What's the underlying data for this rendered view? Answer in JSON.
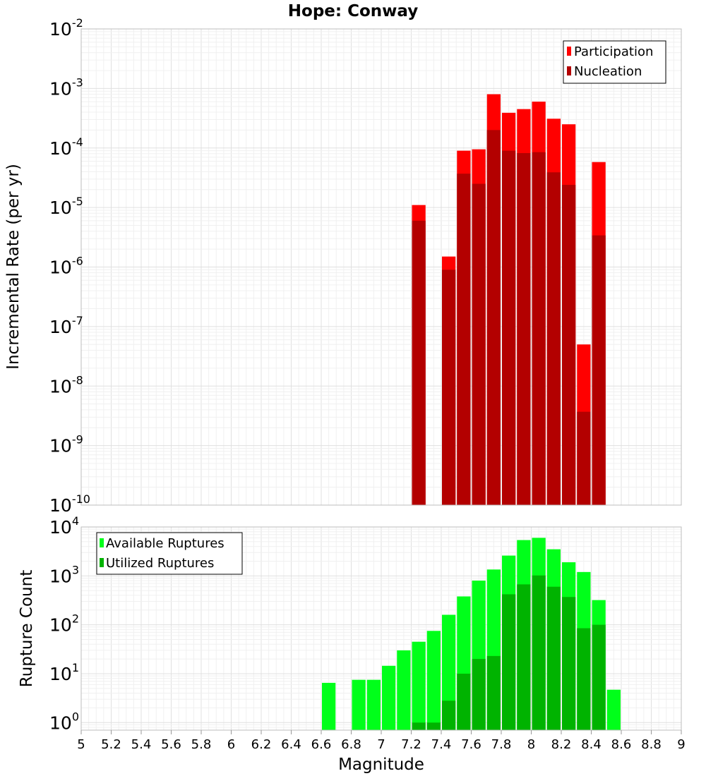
{
  "chart_data": [
    {
      "type": "bar",
      "title": "Hope: Conway",
      "xlabel": "",
      "ylabel": "Incremental Rate (per yr)",
      "yscale": "log",
      "ylim": [
        1e-10,
        0.01
      ],
      "xlim": [
        5,
        9
      ],
      "grid": true,
      "legend_position": "top-right",
      "bin_width": 0.1,
      "x": [
        7.25,
        7.45,
        7.55,
        7.65,
        7.75,
        7.85,
        7.95,
        8.05,
        8.15,
        8.25,
        8.35,
        8.45
      ],
      "series": [
        {
          "name": "Participation",
          "color": "#ff0000",
          "values": [
            1.1e-05,
            1.5e-06,
            9e-05,
            9.5e-05,
            0.0008,
            0.00039,
            0.00045,
            0.0006,
            0.00031,
            0.00025,
            5e-08,
            5.8e-05
          ]
        },
        {
          "name": "Nucleation",
          "color": "#b30000",
          "values": [
            6e-06,
            9e-07,
            3.7e-05,
            2.5e-05,
            0.0002,
            9e-05,
            8.2e-05,
            8.5e-05,
            3.9e-05,
            2.4e-05,
            3.7e-09,
            3.4e-06
          ]
        }
      ],
      "y_tick_labels": [
        {
          "base": "10",
          "exp": "-10"
        },
        {
          "base": "10",
          "exp": "-9"
        },
        {
          "base": "10",
          "exp": "-8"
        },
        {
          "base": "10",
          "exp": "-7"
        },
        {
          "base": "10",
          "exp": "-6"
        },
        {
          "base": "10",
          "exp": "-5"
        },
        {
          "base": "10",
          "exp": "-4"
        },
        {
          "base": "10",
          "exp": "-3"
        },
        {
          "base": "10",
          "exp": "-2"
        }
      ]
    },
    {
      "type": "bar",
      "title": "",
      "xlabel": "Magnitude",
      "ylabel": "Rupture Count",
      "yscale": "log",
      "ylim": [
        0.7,
        10000.0
      ],
      "xlim": [
        5,
        9
      ],
      "grid": true,
      "legend_position": "top-left",
      "bin_width": 0.1,
      "x": [
        6.65,
        6.85,
        6.95,
        7.05,
        7.15,
        7.25,
        7.35,
        7.45,
        7.55,
        7.65,
        7.75,
        7.85,
        7.95,
        8.05,
        8.15,
        8.25,
        8.35,
        8.45,
        8.55
      ],
      "series": [
        {
          "name": "Available Ruptures",
          "color": "#00ff1a",
          "values": [
            6.5,
            7.5,
            7.5,
            14.5,
            30,
            45,
            75,
            160,
            380,
            800,
            1350,
            2600,
            5400,
            6000,
            3500,
            1900,
            1200,
            320,
            4.7
          ]
        },
        {
          "name": "Utilized Ruptures",
          "color": "#00b300",
          "values": [
            0,
            0,
            0,
            0,
            0,
            1,
            1,
            2.8,
            10,
            20,
            23,
            420,
            670,
            1020,
            600,
            370,
            85,
            100,
            0
          ]
        }
      ],
      "x_tick_labels": [
        "5",
        "5.2",
        "5.4",
        "5.6",
        "5.8",
        "6",
        "6.2",
        "6.4",
        "6.6",
        "6.8",
        "7",
        "7.2",
        "7.4",
        "7.6",
        "7.8",
        "8",
        "8.2",
        "8.4",
        "8.6",
        "8.8",
        "9"
      ],
      "y_tick_labels": [
        {
          "base": "10",
          "exp": "0"
        },
        {
          "base": "10",
          "exp": "1"
        },
        {
          "base": "10",
          "exp": "2"
        },
        {
          "base": "10",
          "exp": "3"
        },
        {
          "base": "10",
          "exp": "4"
        }
      ]
    }
  ]
}
